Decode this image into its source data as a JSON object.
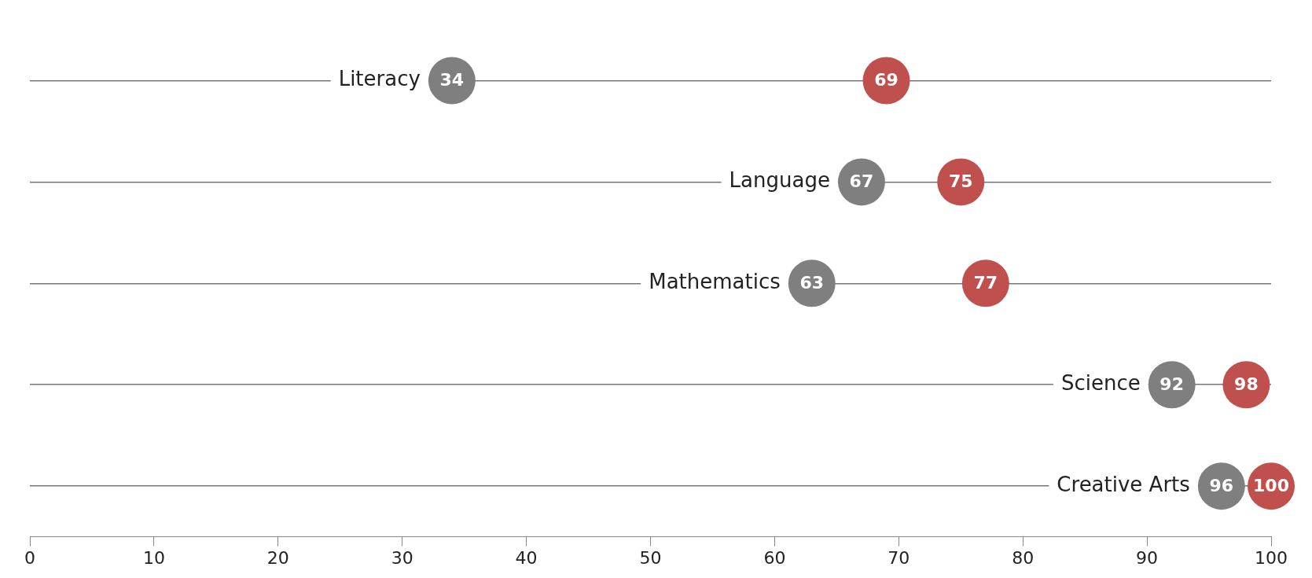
{
  "chart_data": {
    "type": "scatter",
    "orientation": "horizontal",
    "categories": [
      "Literacy",
      "Language",
      "Mathematics",
      "Science",
      "Creative Arts"
    ],
    "series": [
      {
        "color": "#7f7f7f",
        "values": [
          34,
          67,
          63,
          92,
          96
        ]
      },
      {
        "color": "#c0504d",
        "values": [
          69,
          75,
          77,
          98,
          100
        ]
      }
    ],
    "xlim": [
      0,
      100
    ],
    "xticks": [
      0,
      10,
      20,
      30,
      40,
      50,
      60,
      70,
      80,
      90,
      100
    ],
    "grid": "y",
    "marker": "circle",
    "data_labels": true,
    "legend": false
  }
}
